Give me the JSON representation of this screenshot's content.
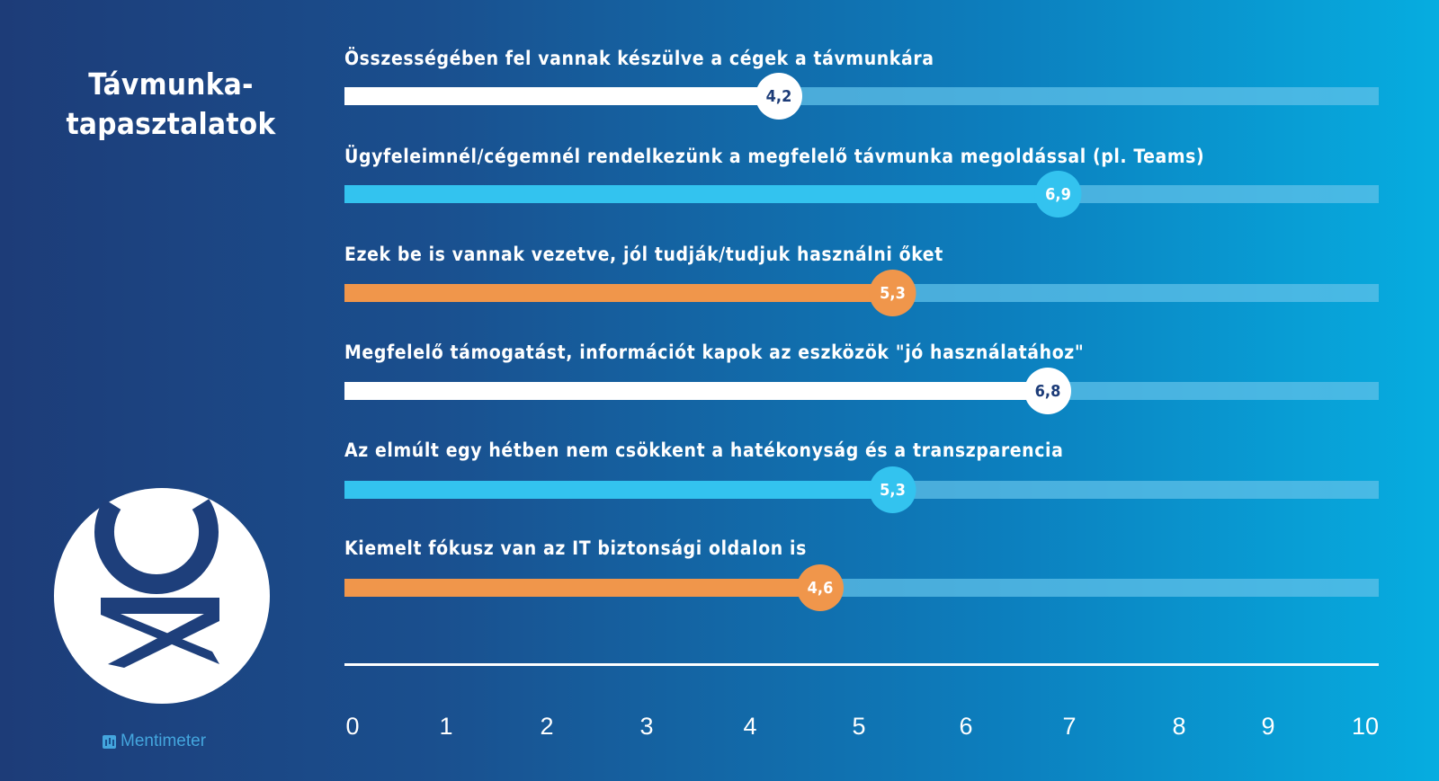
{
  "title": [
    "Távmunka-",
    "tapasztalatok"
  ],
  "brand": "Mentimeter",
  "logo_icon": "ok-monogram-logo",
  "colors": {
    "white_fill": "#ffffff",
    "blue_fill": "#33c3ef",
    "orange_fill": "#f0964b",
    "track": "#5fc0e8",
    "white_value_text": "#1d3c78",
    "blue_value_text": "#ffffff",
    "orange_value_text": "#ffffff",
    "logo": "#1e3f7b"
  },
  "chart_data": {
    "type": "bar",
    "orientation": "horizontal",
    "xlim": [
      0,
      10
    ],
    "ticks": [
      0,
      1,
      2,
      3,
      4,
      5,
      6,
      7,
      8,
      9,
      10
    ],
    "categories": [
      "Összességében fel vannak készülve a cégek a távmunkára",
      "Ügyfeleimnél/cégemnél rendelkezünk a megfelelő távmunka megoldással (pl. Teams)",
      "Ezek be is vannak vezetve, jól tudják/tudjuk használni őket",
      "Megfelelő támogatást, információt kapok az eszközök \"jó használatához\"",
      "Az elmúlt egy hétben nem csökkent a hatékonyság és a transzparencia",
      "Kiemelt fókusz van az IT biztonsági oldalon is"
    ],
    "values": [
      4.2,
      6.9,
      5.3,
      6.8,
      5.3,
      4.6
    ],
    "value_labels": [
      "4,2",
      "6,9",
      "5,3",
      "6,8",
      "5,3",
      "4,6"
    ],
    "bar_colors": [
      "white",
      "blue",
      "orange",
      "white",
      "blue",
      "orange"
    ],
    "grid": false
  }
}
